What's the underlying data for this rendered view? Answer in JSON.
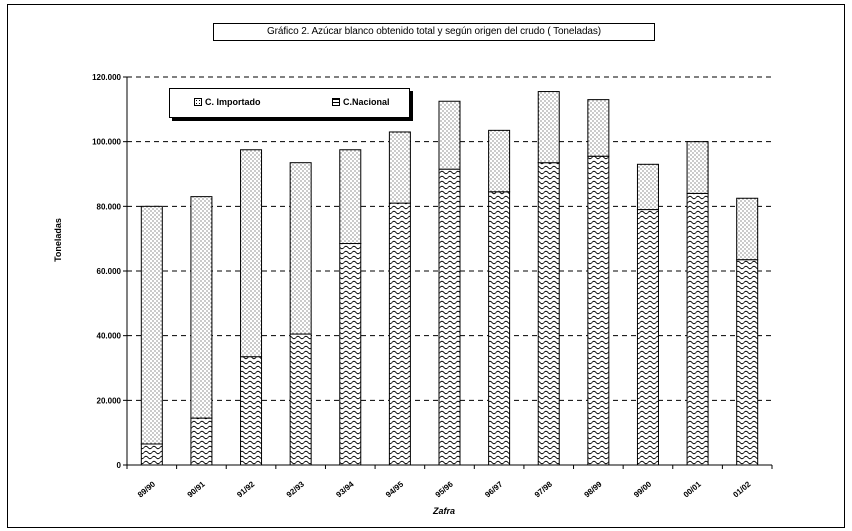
{
  "title": "Gráfico 2. Azúcar blanco obtenido total y según origen del crudo ( Toneladas)",
  "chart_data": {
    "type": "bar",
    "stacked": true,
    "title": "Gráfico 2. Azúcar blanco obtenido total y según origen del crudo ( Toneladas)",
    "xlabel": "Zafra",
    "ylabel": "Toneladas",
    "ylim": [
      0,
      120000
    ],
    "y_ticks": [
      "0",
      "20.000",
      "40.000",
      "60.000",
      "80.000",
      "100.000",
      "120.000"
    ],
    "y_tick_values": [
      0,
      20000,
      40000,
      60000,
      80000,
      100000,
      120000
    ],
    "grid": true,
    "legend_position": "top-left",
    "categories": [
      "89/90",
      "90/91",
      "91/92",
      "92/93",
      "93/94",
      "94/95",
      "95/96",
      "96/97",
      "97/98",
      "98/99",
      "99/00",
      "00/01",
      "01/02"
    ],
    "series": [
      {
        "name": "C.Nacional",
        "pattern": "wave",
        "values": [
          6500,
          14500,
          33500,
          40500,
          68500,
          81000,
          91500,
          84500,
          93500,
          95500,
          79000,
          84000,
          63500
        ]
      },
      {
        "name": "C. Importado",
        "pattern": "dots",
        "values": [
          73500,
          68500,
          64000,
          53000,
          29000,
          22000,
          21000,
          19000,
          22000,
          17500,
          14000,
          16000,
          19000
        ]
      }
    ]
  },
  "legend": {
    "imported": "C. Importado",
    "national": "C.Nacional"
  }
}
